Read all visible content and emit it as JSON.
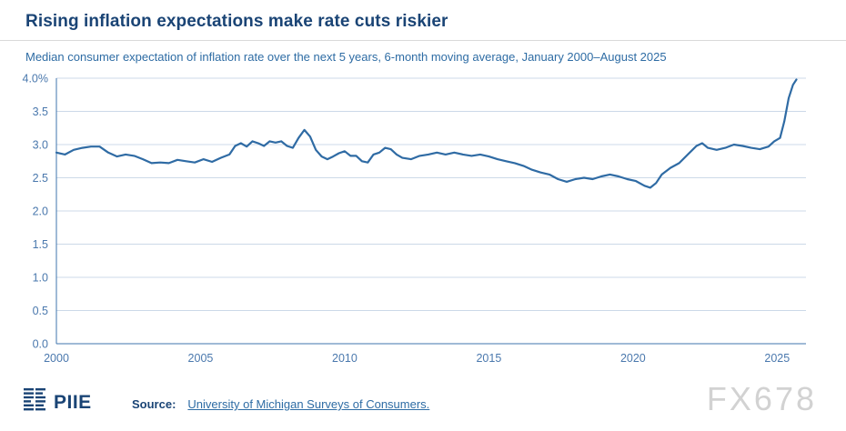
{
  "header": {
    "title": "Rising inflation expectations make rate cuts riskier",
    "subtitle": "Median consumer expectation of inflation rate over the next 5 years, 6-month moving average, January 2000–August 2025"
  },
  "chart_data": {
    "type": "line",
    "title": "Rising inflation expectations make rate cuts riskier",
    "subtitle": "Median consumer expectation of inflation rate over the next 5 years, 6-month moving average, January 2000–August 2025",
    "xlabel": "",
    "ylabel": "",
    "xlim": [
      2000,
      2026
    ],
    "ylim": [
      0,
      4.0
    ],
    "grid": true,
    "x_ticks": [
      2000,
      2005,
      2010,
      2015,
      2020,
      2025
    ],
    "y_ticks": [
      0.0,
      0.5,
      1.0,
      1.5,
      2.0,
      2.5,
      3.0,
      3.5,
      4.0
    ],
    "y_tick_labels": [
      "0.0",
      "0.5",
      "1.0",
      "1.5",
      "2.0",
      "2.5",
      "3.0",
      "3.5",
      "4.0%"
    ],
    "line_color": "#2f6ba4",
    "grid_color": "#ccd9e8",
    "axis_color": "#3f74ad",
    "tick_color": "#4a78ad",
    "series": [
      {
        "name": "Median consumer 5-year inflation expectation (6-month moving average, %)",
        "x": [
          2000.0,
          2000.3,
          2000.6,
          2000.9,
          2001.2,
          2001.5,
          2001.8,
          2002.1,
          2002.4,
          2002.7,
          2003.0,
          2003.3,
          2003.6,
          2003.9,
          2004.2,
          2004.5,
          2004.8,
          2005.1,
          2005.4,
          2005.7,
          2006.0,
          2006.2,
          2006.4,
          2006.6,
          2006.8,
          2007.0,
          2007.2,
          2007.4,
          2007.6,
          2007.8,
          2008.0,
          2008.2,
          2008.4,
          2008.6,
          2008.8,
          2009.0,
          2009.2,
          2009.4,
          2009.6,
          2009.8,
          2010.0,
          2010.2,
          2010.4,
          2010.6,
          2010.8,
          2011.0,
          2011.2,
          2011.4,
          2011.6,
          2011.8,
          2012.0,
          2012.3,
          2012.6,
          2012.9,
          2013.2,
          2013.5,
          2013.8,
          2014.1,
          2014.4,
          2014.7,
          2015.0,
          2015.3,
          2015.6,
          2015.9,
          2016.2,
          2016.5,
          2016.8,
          2017.1,
          2017.4,
          2017.7,
          2018.0,
          2018.3,
          2018.6,
          2018.9,
          2019.2,
          2019.5,
          2019.8,
          2020.1,
          2020.4,
          2020.6,
          2020.8,
          2021.0,
          2021.3,
          2021.6,
          2021.9,
          2022.2,
          2022.4,
          2022.6,
          2022.9,
          2023.2,
          2023.5,
          2023.8,
          2024.1,
          2024.4,
          2024.7,
          2024.9,
          2025.1,
          2025.25,
          2025.4,
          2025.55,
          2025.67
        ],
        "y": [
          2.88,
          2.85,
          2.92,
          2.95,
          2.97,
          2.97,
          2.88,
          2.82,
          2.85,
          2.83,
          2.78,
          2.72,
          2.73,
          2.72,
          2.77,
          2.75,
          2.73,
          2.78,
          2.74,
          2.8,
          2.85,
          2.98,
          3.02,
          2.97,
          3.05,
          3.02,
          2.98,
          3.05,
          3.03,
          3.05,
          2.98,
          2.95,
          3.1,
          3.22,
          3.12,
          2.92,
          2.82,
          2.78,
          2.82,
          2.87,
          2.9,
          2.83,
          2.83,
          2.75,
          2.73,
          2.85,
          2.88,
          2.95,
          2.93,
          2.85,
          2.8,
          2.78,
          2.83,
          2.85,
          2.88,
          2.85,
          2.88,
          2.85,
          2.83,
          2.85,
          2.82,
          2.78,
          2.75,
          2.72,
          2.68,
          2.62,
          2.58,
          2.55,
          2.48,
          2.44,
          2.48,
          2.5,
          2.48,
          2.52,
          2.55,
          2.52,
          2.48,
          2.45,
          2.38,
          2.35,
          2.42,
          2.55,
          2.65,
          2.72,
          2.85,
          2.98,
          3.02,
          2.95,
          2.92,
          2.95,
          3.0,
          2.98,
          2.95,
          2.93,
          2.97,
          3.05,
          3.1,
          3.35,
          3.7,
          3.9,
          3.98
        ]
      }
    ]
  },
  "footer": {
    "logo_text": "PIIE",
    "source_label": "Source:",
    "source_link": "University of Michigan Surveys of Consumers."
  },
  "watermark": "FX678"
}
